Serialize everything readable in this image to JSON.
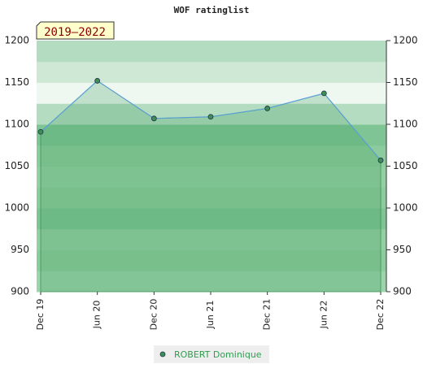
{
  "chart_data": {
    "type": "line",
    "title": "WOF ratinglist",
    "annotation": "2019–2022",
    "categories": [
      "Dec 19",
      "Jun 20",
      "Dec 20",
      "Jun 21",
      "Dec 21",
      "Jun 22",
      "Dec 22"
    ],
    "series": [
      {
        "name": "ROBERT Dominique",
        "color": "#5a9fd4",
        "marker_color": "#3d8f57",
        "values": [
          1091,
          1152,
          1107,
          1109,
          1119,
          1137,
          1057
        ]
      }
    ],
    "ylim": [
      900,
      1200
    ],
    "yticks": [
      900,
      950,
      1000,
      1050,
      1100,
      1150,
      1200
    ]
  }
}
